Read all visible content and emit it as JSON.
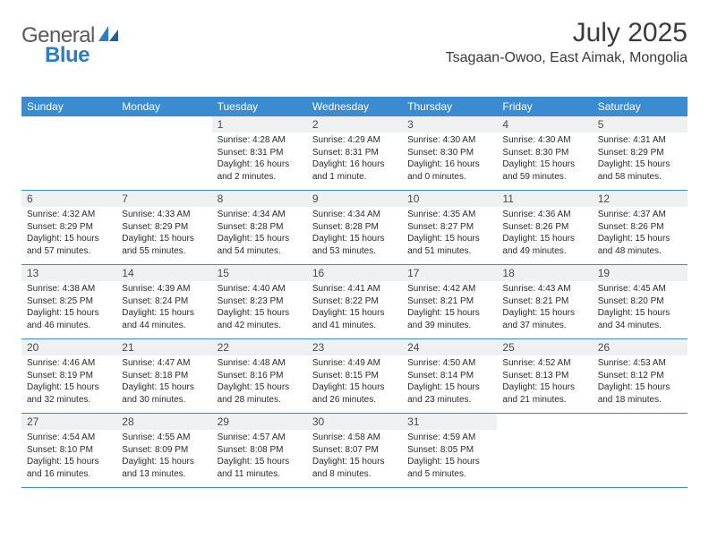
{
  "brand": {
    "name_gray": "General",
    "name_blue": "Blue"
  },
  "colors": {
    "header_bg": "#3b8bd0",
    "daynum_bg": "#eef0f2",
    "row_border": "#3b8bd0",
    "text": "#2b2b2b",
    "title_text": "#3b3b3b",
    "logo_gray": "#5a5a5a",
    "logo_blue": "#2e7cc4",
    "page_bg": "#ffffff"
  },
  "typography": {
    "title_fontsize": 30,
    "location_fontsize": 16,
    "weekday_fontsize": 12,
    "daynum_fontsize": 12,
    "body_fontsize": 10
  },
  "title": "July 2025",
  "location": "Tsagaan-Owoo, East Aimak, Mongolia",
  "weekdays": [
    "Sunday",
    "Monday",
    "Tuesday",
    "Wednesday",
    "Thursday",
    "Friday",
    "Saturday"
  ],
  "weeks": [
    [
      {
        "n": "",
        "sunrise": "",
        "sunset": "",
        "daylight": ""
      },
      {
        "n": "",
        "sunrise": "",
        "sunset": "",
        "daylight": ""
      },
      {
        "n": "1",
        "sunrise": "Sunrise: 4:28 AM",
        "sunset": "Sunset: 8:31 PM",
        "daylight": "Daylight: 16 hours and 2 minutes."
      },
      {
        "n": "2",
        "sunrise": "Sunrise: 4:29 AM",
        "sunset": "Sunset: 8:31 PM",
        "daylight": "Daylight: 16 hours and 1 minute."
      },
      {
        "n": "3",
        "sunrise": "Sunrise: 4:30 AM",
        "sunset": "Sunset: 8:30 PM",
        "daylight": "Daylight: 16 hours and 0 minutes."
      },
      {
        "n": "4",
        "sunrise": "Sunrise: 4:30 AM",
        "sunset": "Sunset: 8:30 PM",
        "daylight": "Daylight: 15 hours and 59 minutes."
      },
      {
        "n": "5",
        "sunrise": "Sunrise: 4:31 AM",
        "sunset": "Sunset: 8:29 PM",
        "daylight": "Daylight: 15 hours and 58 minutes."
      }
    ],
    [
      {
        "n": "6",
        "sunrise": "Sunrise: 4:32 AM",
        "sunset": "Sunset: 8:29 PM",
        "daylight": "Daylight: 15 hours and 57 minutes."
      },
      {
        "n": "7",
        "sunrise": "Sunrise: 4:33 AM",
        "sunset": "Sunset: 8:29 PM",
        "daylight": "Daylight: 15 hours and 55 minutes."
      },
      {
        "n": "8",
        "sunrise": "Sunrise: 4:34 AM",
        "sunset": "Sunset: 8:28 PM",
        "daylight": "Daylight: 15 hours and 54 minutes."
      },
      {
        "n": "9",
        "sunrise": "Sunrise: 4:34 AM",
        "sunset": "Sunset: 8:28 PM",
        "daylight": "Daylight: 15 hours and 53 minutes."
      },
      {
        "n": "10",
        "sunrise": "Sunrise: 4:35 AM",
        "sunset": "Sunset: 8:27 PM",
        "daylight": "Daylight: 15 hours and 51 minutes."
      },
      {
        "n": "11",
        "sunrise": "Sunrise: 4:36 AM",
        "sunset": "Sunset: 8:26 PM",
        "daylight": "Daylight: 15 hours and 49 minutes."
      },
      {
        "n": "12",
        "sunrise": "Sunrise: 4:37 AM",
        "sunset": "Sunset: 8:26 PM",
        "daylight": "Daylight: 15 hours and 48 minutes."
      }
    ],
    [
      {
        "n": "13",
        "sunrise": "Sunrise: 4:38 AM",
        "sunset": "Sunset: 8:25 PM",
        "daylight": "Daylight: 15 hours and 46 minutes."
      },
      {
        "n": "14",
        "sunrise": "Sunrise: 4:39 AM",
        "sunset": "Sunset: 8:24 PM",
        "daylight": "Daylight: 15 hours and 44 minutes."
      },
      {
        "n": "15",
        "sunrise": "Sunrise: 4:40 AM",
        "sunset": "Sunset: 8:23 PM",
        "daylight": "Daylight: 15 hours and 42 minutes."
      },
      {
        "n": "16",
        "sunrise": "Sunrise: 4:41 AM",
        "sunset": "Sunset: 8:22 PM",
        "daylight": "Daylight: 15 hours and 41 minutes."
      },
      {
        "n": "17",
        "sunrise": "Sunrise: 4:42 AM",
        "sunset": "Sunset: 8:21 PM",
        "daylight": "Daylight: 15 hours and 39 minutes."
      },
      {
        "n": "18",
        "sunrise": "Sunrise: 4:43 AM",
        "sunset": "Sunset: 8:21 PM",
        "daylight": "Daylight: 15 hours and 37 minutes."
      },
      {
        "n": "19",
        "sunrise": "Sunrise: 4:45 AM",
        "sunset": "Sunset: 8:20 PM",
        "daylight": "Daylight: 15 hours and 34 minutes."
      }
    ],
    [
      {
        "n": "20",
        "sunrise": "Sunrise: 4:46 AM",
        "sunset": "Sunset: 8:19 PM",
        "daylight": "Daylight: 15 hours and 32 minutes."
      },
      {
        "n": "21",
        "sunrise": "Sunrise: 4:47 AM",
        "sunset": "Sunset: 8:18 PM",
        "daylight": "Daylight: 15 hours and 30 minutes."
      },
      {
        "n": "22",
        "sunrise": "Sunrise: 4:48 AM",
        "sunset": "Sunset: 8:16 PM",
        "daylight": "Daylight: 15 hours and 28 minutes."
      },
      {
        "n": "23",
        "sunrise": "Sunrise: 4:49 AM",
        "sunset": "Sunset: 8:15 PM",
        "daylight": "Daylight: 15 hours and 26 minutes."
      },
      {
        "n": "24",
        "sunrise": "Sunrise: 4:50 AM",
        "sunset": "Sunset: 8:14 PM",
        "daylight": "Daylight: 15 hours and 23 minutes."
      },
      {
        "n": "25",
        "sunrise": "Sunrise: 4:52 AM",
        "sunset": "Sunset: 8:13 PM",
        "daylight": "Daylight: 15 hours and 21 minutes."
      },
      {
        "n": "26",
        "sunrise": "Sunrise: 4:53 AM",
        "sunset": "Sunset: 8:12 PM",
        "daylight": "Daylight: 15 hours and 18 minutes."
      }
    ],
    [
      {
        "n": "27",
        "sunrise": "Sunrise: 4:54 AM",
        "sunset": "Sunset: 8:10 PM",
        "daylight": "Daylight: 15 hours and 16 minutes."
      },
      {
        "n": "28",
        "sunrise": "Sunrise: 4:55 AM",
        "sunset": "Sunset: 8:09 PM",
        "daylight": "Daylight: 15 hours and 13 minutes."
      },
      {
        "n": "29",
        "sunrise": "Sunrise: 4:57 AM",
        "sunset": "Sunset: 8:08 PM",
        "daylight": "Daylight: 15 hours and 11 minutes."
      },
      {
        "n": "30",
        "sunrise": "Sunrise: 4:58 AM",
        "sunset": "Sunset: 8:07 PM",
        "daylight": "Daylight: 15 hours and 8 minutes."
      },
      {
        "n": "31",
        "sunrise": "Sunrise: 4:59 AM",
        "sunset": "Sunset: 8:05 PM",
        "daylight": "Daylight: 15 hours and 5 minutes."
      },
      {
        "n": "",
        "sunrise": "",
        "sunset": "",
        "daylight": ""
      },
      {
        "n": "",
        "sunrise": "",
        "sunset": "",
        "daylight": ""
      }
    ]
  ]
}
